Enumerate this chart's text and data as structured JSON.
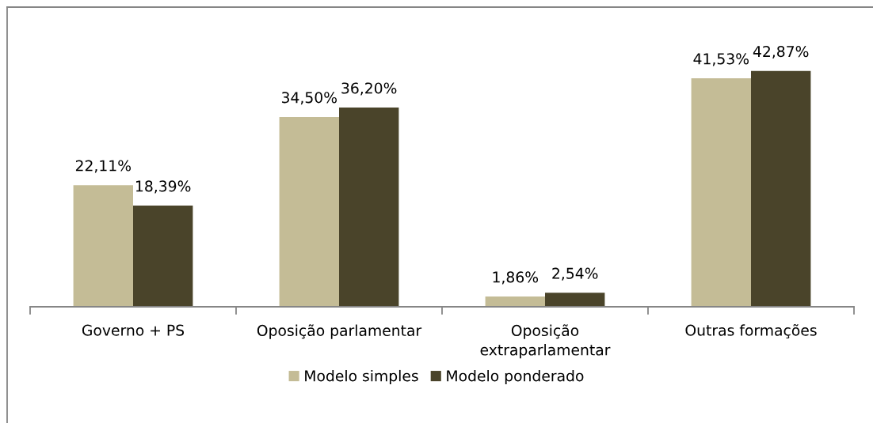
{
  "chart_data": {
    "type": "bar",
    "categories": [
      "Governo + PS",
      "Oposição parlamentar",
      "Oposição extraparlamentar",
      "Outras formações"
    ],
    "series": [
      {
        "name": "Modelo simples",
        "color": "#c4bc96",
        "values": [
          22.11,
          34.5,
          1.86,
          41.53
        ],
        "value_labels": [
          "22,11%",
          "34,50%",
          "1,86%",
          "41,53%"
        ]
      },
      {
        "name": "Modelo ponderado",
        "color": "#4a442a",
        "values": [
          18.39,
          36.2,
          2.54,
          42.87
        ],
        "value_labels": [
          "18,39%",
          "36,20%",
          "2,54%",
          "42,87%"
        ]
      }
    ],
    "legend": "bottom",
    "tick_labels": "x"
  }
}
